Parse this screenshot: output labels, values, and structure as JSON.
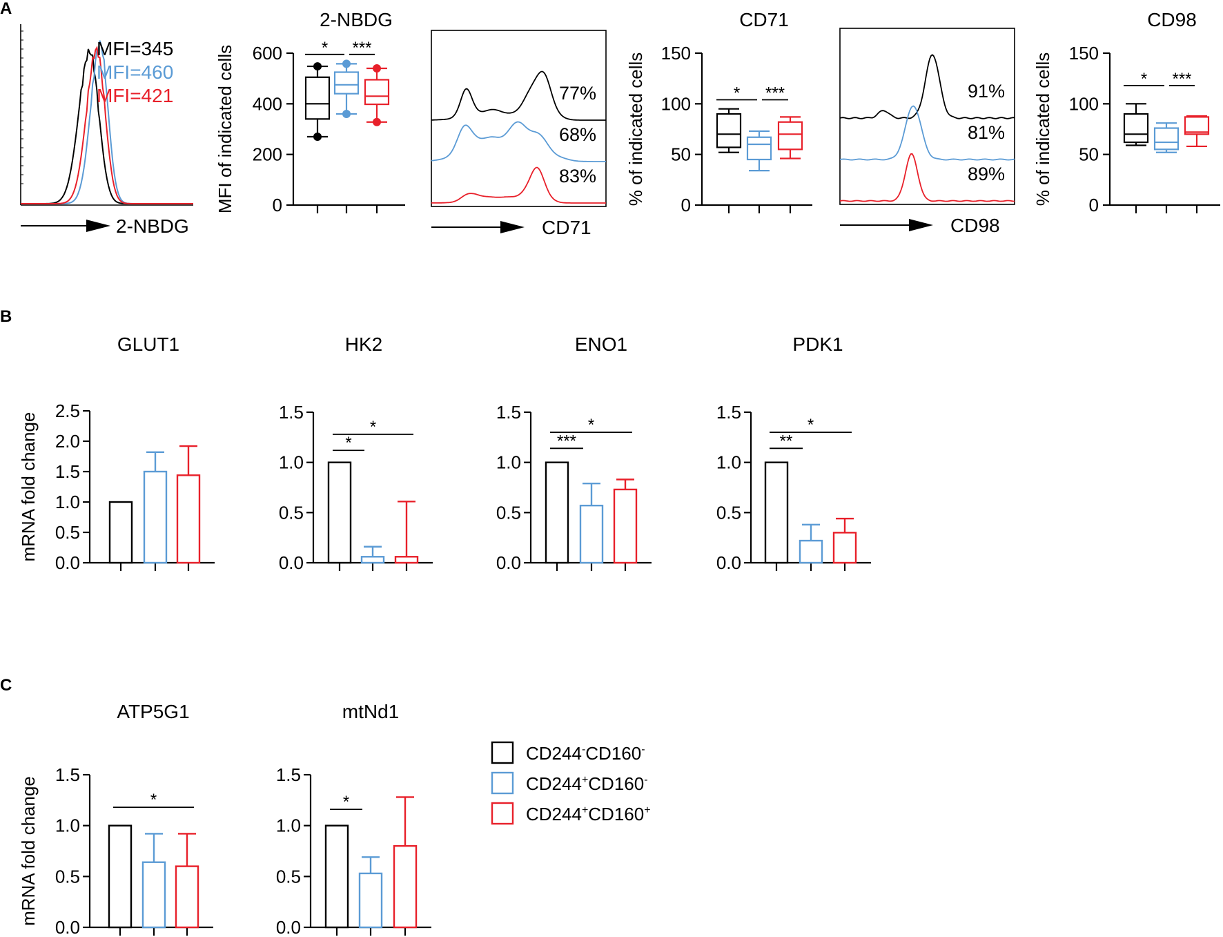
{
  "colors": {
    "black": "#000000",
    "blue": "#5b9bd5",
    "red": "#e8202a"
  },
  "panel_labels": {
    "a": "A",
    "b": "B",
    "c": "C"
  },
  "legend": {
    "items": [
      {
        "base": "CD244",
        "sup1": "-",
        "mid": "CD160",
        "sup2": "-",
        "color": "#000000"
      },
      {
        "base": "CD244",
        "sup1": "+",
        "mid": "CD160",
        "sup2": "-",
        "color": "#5b9bd5"
      },
      {
        "base": "CD244",
        "sup1": "+",
        "mid": "CD160",
        "sup2": "+",
        "color": "#e8202a"
      }
    ]
  },
  "chart_data": [
    {
      "id": "nbdg_hist",
      "type": "histogram",
      "xlabel": "2-NBDG",
      "labels": [
        {
          "text": "MFI=345",
          "color": "#000000"
        },
        {
          "text": "MFI=460",
          "color": "#5b9bd5"
        },
        {
          "text": "MFI=421",
          "color": "#e8202a"
        }
      ],
      "series": [
        {
          "name": "CD244-CD160-",
          "color": "#000000",
          "mode": 0.4,
          "width": 0.07,
          "peak": 0.95
        },
        {
          "name": "CD244+CD160-",
          "color": "#5b9bd5",
          "mode": 0.46,
          "width": 0.06,
          "peak": 1.0
        },
        {
          "name": "CD244+CD160+",
          "color": "#e8202a",
          "mode": 0.44,
          "width": 0.065,
          "peak": 0.96
        }
      ]
    },
    {
      "id": "nbdg_box",
      "type": "box",
      "title": "2-NBDG",
      "ylabel": "MFI of indicated cells",
      "ylim": [
        0,
        600
      ],
      "yticks": [
        "0",
        "200",
        "400",
        "600"
      ],
      "groups": [
        {
          "color": "#000000",
          "min": 270,
          "q1": 340,
          "median": 400,
          "q3": 505,
          "max": 548
        },
        {
          "color": "#5b9bd5",
          "min": 360,
          "q1": 440,
          "median": 475,
          "q3": 525,
          "max": 558
        },
        {
          "color": "#e8202a",
          "min": 328,
          "q1": 398,
          "median": 430,
          "q3": 495,
          "max": 540
        }
      ],
      "significance": [
        {
          "from": 0,
          "to": 1,
          "label": "*",
          "level": 595
        },
        {
          "from": 1,
          "to": 2,
          "label": "***",
          "level": 595
        }
      ]
    },
    {
      "id": "cd71_hist",
      "type": "histogram-offset",
      "xlabel": "CD71",
      "percents": [
        "77%",
        "68%",
        "83%"
      ],
      "colors": [
        "#000000",
        "#5b9bd5",
        "#e8202a"
      ]
    },
    {
      "id": "cd71_box",
      "type": "box",
      "title": "CD71",
      "ylabel": "% of indicated cells",
      "ylim": [
        0,
        150
      ],
      "yticks": [
        "0",
        "50",
        "100",
        "150"
      ],
      "groups": [
        {
          "color": "#000000",
          "min": 52,
          "q1": 57,
          "median": 70,
          "q3": 90,
          "max": 95
        },
        {
          "color": "#5b9bd5",
          "min": 34,
          "q1": 45,
          "median": 60,
          "q3": 67,
          "max": 73
        },
        {
          "color": "#e8202a",
          "min": 46,
          "q1": 55,
          "median": 70,
          "q3": 82,
          "max": 87
        }
      ],
      "significance": [
        {
          "from": 0,
          "to": 1,
          "label": "*",
          "level": 104
        },
        {
          "from": 1,
          "to": 2,
          "label": "***",
          "level": 104
        }
      ]
    },
    {
      "id": "cd98_hist",
      "type": "histogram-offset",
      "xlabel": "CD98",
      "percents": [
        "91%",
        "81%",
        "89%"
      ],
      "colors": [
        "#000000",
        "#5b9bd5",
        "#e8202a"
      ]
    },
    {
      "id": "cd98_box",
      "type": "box",
      "title": "CD98",
      "ylabel": "% of indicated cells",
      "ylim": [
        0,
        150
      ],
      "yticks": [
        "0",
        "50",
        "100",
        "150"
      ],
      "groups": [
        {
          "color": "#000000",
          "min": 59,
          "q1": 62,
          "median": 70,
          "q3": 90,
          "max": 100
        },
        {
          "color": "#5b9bd5",
          "min": 52,
          "q1": 55,
          "median": 62,
          "q3": 76,
          "max": 81
        },
        {
          "color": "#e8202a",
          "min": 58,
          "q1": 70,
          "median": 72,
          "q3": 87,
          "max": 88
        }
      ],
      "significance": [
        {
          "from": 0,
          "to": 1,
          "label": "*",
          "level": 118
        },
        {
          "from": 1,
          "to": 2,
          "label": "***",
          "level": 118
        }
      ]
    },
    {
      "id": "glut1",
      "type": "bar",
      "title": "GLUT1",
      "ylabel": "mRNA fold change",
      "ylim": [
        0,
        2.5
      ],
      "yticks": [
        "0.0",
        "0.5",
        "1.0",
        "1.5",
        "2.0",
        "2.5"
      ],
      "values": [
        1.0,
        1.5,
        1.44
      ],
      "errors": [
        0,
        0.32,
        0.48
      ],
      "colors": [
        "#000000",
        "#5b9bd5",
        "#e8202a"
      ],
      "significance": []
    },
    {
      "id": "hk2",
      "type": "bar",
      "title": "HK2",
      "ylabel": "",
      "ylim": [
        0,
        1.5
      ],
      "yticks": [
        "0.0",
        "0.5",
        "1.0",
        "1.5"
      ],
      "values": [
        1.0,
        0.06,
        0.06
      ],
      "errors": [
        0,
        0.1,
        0.55
      ],
      "colors": [
        "#000000",
        "#5b9bd5",
        "#e8202a"
      ],
      "significance": [
        {
          "from": 0,
          "to": 1,
          "label": "*",
          "level": 1.12
        },
        {
          "from": 0,
          "to": 2,
          "label": "*",
          "level": 1.28
        }
      ]
    },
    {
      "id": "eno1",
      "type": "bar",
      "title": "ENO1",
      "ylabel": "",
      "ylim": [
        0,
        1.5
      ],
      "yticks": [
        "0.0",
        "0.5",
        "1.0",
        "1.5"
      ],
      "values": [
        1.0,
        0.57,
        0.73
      ],
      "errors": [
        0,
        0.22,
        0.1
      ],
      "colors": [
        "#000000",
        "#5b9bd5",
        "#e8202a"
      ],
      "significance": [
        {
          "from": 0,
          "to": 1,
          "label": "***",
          "level": 1.14
        },
        {
          "from": 0,
          "to": 2,
          "label": "*",
          "level": 1.3
        }
      ]
    },
    {
      "id": "pdk1",
      "type": "bar",
      "title": "PDK1",
      "ylabel": "",
      "ylim": [
        0,
        1.5
      ],
      "yticks": [
        "0.0",
        "0.5",
        "1.0",
        "1.5"
      ],
      "values": [
        1.0,
        0.22,
        0.3
      ],
      "errors": [
        0,
        0.16,
        0.14
      ],
      "colors": [
        "#000000",
        "#5b9bd5",
        "#e8202a"
      ],
      "significance": [
        {
          "from": 0,
          "to": 1,
          "label": "**",
          "level": 1.14
        },
        {
          "from": 0,
          "to": 2,
          "label": "*",
          "level": 1.3
        }
      ]
    },
    {
      "id": "atp5g1",
      "type": "bar",
      "title": "ATP5G1",
      "ylabel": "mRNA fold change",
      "ylim": [
        0,
        1.5
      ],
      "yticks": [
        "0.0",
        "0.5",
        "1.0",
        "1.5"
      ],
      "values": [
        1.0,
        0.64,
        0.6
      ],
      "errors": [
        0,
        0.28,
        0.32
      ],
      "colors": [
        "#000000",
        "#5b9bd5",
        "#e8202a"
      ],
      "significance": [
        {
          "from": 0,
          "to": 2,
          "label": "*",
          "level": 1.18
        }
      ]
    },
    {
      "id": "mtnd1",
      "type": "bar",
      "title": "mtNd1",
      "ylabel": "",
      "ylim": [
        0,
        1.5
      ],
      "yticks": [
        "0.0",
        "0.5",
        "1.0",
        "1.5"
      ],
      "values": [
        1.0,
        0.53,
        0.8
      ],
      "errors": [
        0,
        0.16,
        0.48
      ],
      "colors": [
        "#000000",
        "#5b9bd5",
        "#e8202a"
      ],
      "significance": [
        {
          "from": 0,
          "to": 1,
          "label": "*",
          "level": 1.16
        }
      ]
    }
  ]
}
